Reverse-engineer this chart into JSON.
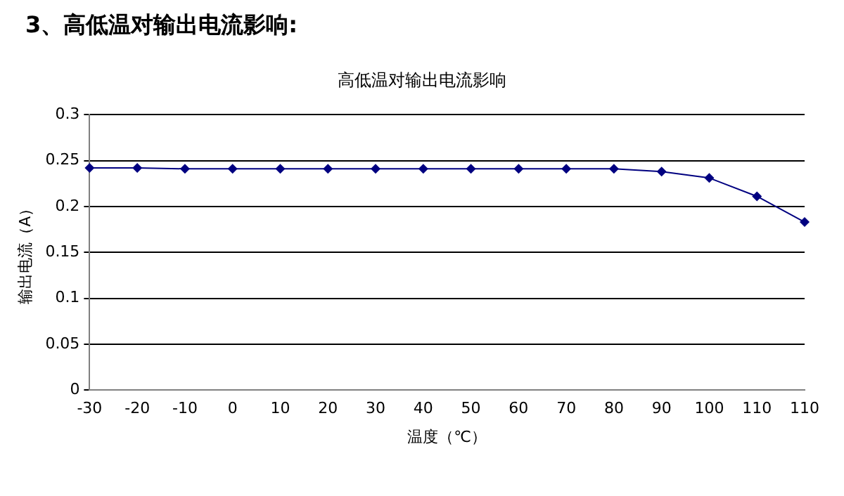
{
  "chart_data": {
    "type": "line",
    "title": "3、高低温对输出电流影响:",
    "subtitle": "高低温对输出电流影响",
    "xlabel": "温度（℃）",
    "ylabel": "输出电流（A）",
    "categories": [
      "-30",
      "-20",
      "-10",
      "0",
      "10",
      "20",
      "30",
      "40",
      "50",
      "60",
      "70",
      "80",
      "90",
      "100",
      "110",
      "110"
    ],
    "series": [
      {
        "color": "#000080",
        "values": [
          0.242,
          0.242,
          0.241,
          0.241,
          0.241,
          0.241,
          0.241,
          0.241,
          0.241,
          0.241,
          0.241,
          0.241,
          0.238,
          0.231,
          0.211,
          0.183
        ]
      }
    ],
    "ylim": [
      0,
      0.3
    ],
    "yticks": [
      0,
      0.05,
      0.1,
      0.15,
      0.2,
      0.25,
      0.3
    ],
    "grid": "y",
    "marker": "diamond",
    "line_style": "solid",
    "legend": false
  }
}
